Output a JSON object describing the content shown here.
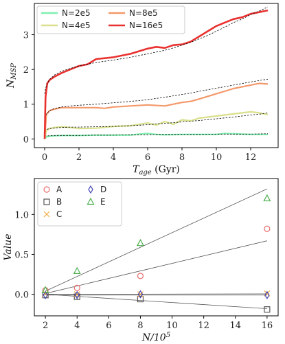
{
  "chart_data": [
    {
      "type": "line",
      "xlabel": "T_age (Gyr)",
      "xlabel_main": "T",
      "xlabel_sub": "age",
      "xlabel_unit": " (Gyr)",
      "ylabel": "N_MSP",
      "ylabel_main": "N",
      "ylabel_sub": "MSP",
      "xlim": [
        -0.6,
        13.6
      ],
      "ylim": [
        -0.25,
        3.9
      ],
      "xticks": [
        0,
        2,
        4,
        6,
        8,
        10,
        12
      ],
      "yticks": [
        0,
        1,
        2,
        3
      ],
      "legend_position": "top-left",
      "series": [
        {
          "name": "N=2e5",
          "color": "#7ff0b0",
          "x": [
            0,
            0.1,
            0.3,
            0.6,
            1,
            2,
            3,
            4,
            5,
            5.5,
            6,
            6.5,
            7,
            8,
            9,
            10,
            10.5,
            11,
            12,
            13
          ],
          "y": [
            0,
            0.06,
            0.08,
            0.09,
            0.1,
            0.1,
            0.11,
            0.11,
            0.11,
            0.14,
            0.16,
            0.13,
            0.12,
            0.13,
            0.13,
            0.13,
            0.16,
            0.15,
            0.13,
            0.13
          ],
          "fit": [
            0.08,
            0.09,
            0.09,
            0.1,
            0.1,
            0.1,
            0.11,
            0.11,
            0.12,
            0.12,
            0.12,
            0.13,
            0.13,
            0.13,
            0.13,
            0.14,
            0.14,
            0.14,
            0.14,
            0.15
          ]
        },
        {
          "name": "N=4e5",
          "color": "#d9df8a",
          "x": [
            0,
            0.1,
            0.3,
            0.6,
            1,
            1.5,
            2,
            3,
            4,
            5,
            6,
            6.5,
            7,
            7.5,
            8,
            8.5,
            9,
            10,
            11,
            12,
            12.5,
            13
          ],
          "y": [
            0,
            0.25,
            0.3,
            0.33,
            0.35,
            0.33,
            0.3,
            0.31,
            0.36,
            0.38,
            0.46,
            0.4,
            0.5,
            0.42,
            0.55,
            0.52,
            0.6,
            0.66,
            0.72,
            0.78,
            0.75,
            0.7
          ],
          "fit": [
            0.22,
            0.27,
            0.3,
            0.32,
            0.33,
            0.34,
            0.34,
            0.35,
            0.36,
            0.38,
            0.41,
            0.43,
            0.45,
            0.47,
            0.49,
            0.51,
            0.53,
            0.58,
            0.63,
            0.69,
            0.71,
            0.75
          ]
        },
        {
          "name": "N=8e5",
          "color": "#f4986a",
          "x": [
            0,
            0.1,
            0.3,
            0.6,
            1,
            1.5,
            2,
            3,
            3.5,
            4,
            5,
            6,
            7,
            7.5,
            8,
            8.5,
            9,
            10,
            11,
            12,
            12.5,
            13
          ],
          "y": [
            0,
            0.7,
            0.82,
            0.86,
            0.9,
            0.9,
            0.9,
            0.9,
            0.88,
            0.92,
            0.95,
            0.98,
            0.95,
            1.0,
            1.05,
            1.08,
            1.15,
            1.3,
            1.45,
            1.55,
            1.6,
            1.58
          ],
          "fit": [
            0.6,
            0.72,
            0.82,
            0.88,
            0.92,
            0.95,
            0.97,
            1.0,
            1.02,
            1.04,
            1.08,
            1.13,
            1.2,
            1.24,
            1.28,
            1.32,
            1.37,
            1.46,
            1.55,
            1.64,
            1.68,
            1.72
          ]
        },
        {
          "name": "N=16e5",
          "color": "#e8312f",
          "x": [
            0,
            0.05,
            0.15,
            0.3,
            0.6,
            1,
            1.5,
            2,
            2.5,
            3,
            4,
            5,
            6,
            6.5,
            7,
            7.5,
            8,
            8.5,
            9,
            9.5,
            10,
            10.5,
            11,
            11.5,
            12,
            12.5,
            13
          ],
          "y": [
            0,
            1.2,
            1.6,
            1.7,
            1.8,
            1.9,
            2.0,
            2.1,
            2.15,
            2.3,
            2.35,
            2.45,
            2.6,
            2.65,
            2.62,
            2.7,
            2.72,
            2.8,
            2.95,
            3.1,
            3.25,
            3.35,
            3.45,
            3.5,
            3.6,
            3.65,
            3.7
          ],
          "fit": [
            1.3,
            1.45,
            1.6,
            1.72,
            1.85,
            1.95,
            2.03,
            2.1,
            2.15,
            2.2,
            2.27,
            2.35,
            2.45,
            2.5,
            2.55,
            2.62,
            2.7,
            2.78,
            2.88,
            2.98,
            3.1,
            3.22,
            3.35,
            3.45,
            3.58,
            3.68,
            3.8
          ]
        }
      ]
    },
    {
      "type": "scatter",
      "xlabel": "N/10^5",
      "xlabel_main": "N/10",
      "xlabel_sup": "5",
      "ylabel": "Value",
      "xlim": [
        1.3,
        16.7
      ],
      "ylim": [
        -0.27,
        1.45
      ],
      "xticks": [
        2,
        4,
        6,
        8,
        10,
        12,
        14,
        16
      ],
      "yticks": [
        0.0,
        0.5,
        1.0
      ],
      "ytick_labels": [
        "0.0",
        "0.5",
        "1.0"
      ],
      "legend_position": "top-left",
      "categories": [
        2,
        4,
        8,
        16
      ],
      "series": [
        {
          "name": "A",
          "marker": "circle",
          "color": "#e86a6a",
          "values": [
            0.05,
            0.08,
            0.23,
            0.82
          ],
          "fit_endpoints": [
            0.01,
            0.67
          ]
        },
        {
          "name": "B",
          "marker": "square",
          "color": "#555555",
          "values": [
            -0.01,
            -0.03,
            -0.06,
            -0.19
          ],
          "fit_endpoints": [
            0.0,
            -0.18
          ]
        },
        {
          "name": "C",
          "marker": "x",
          "color": "#f2a93b",
          "values": [
            0.01,
            0.0,
            0.0,
            0.01
          ],
          "fit_endpoints": [
            0.0,
            0.005
          ]
        },
        {
          "name": "D",
          "marker": "diamond",
          "color": "#3f3fb3",
          "values": [
            -0.01,
            -0.01,
            0.0,
            -0.01
          ],
          "fit_endpoints": [
            -0.01,
            -0.01
          ]
        },
        {
          "name": "E",
          "marker": "triangle",
          "color": "#4caf50",
          "values": [
            0.05,
            0.29,
            0.64,
            1.2
          ],
          "fit_endpoints": [
            0.04,
            1.32
          ]
        }
      ]
    }
  ]
}
